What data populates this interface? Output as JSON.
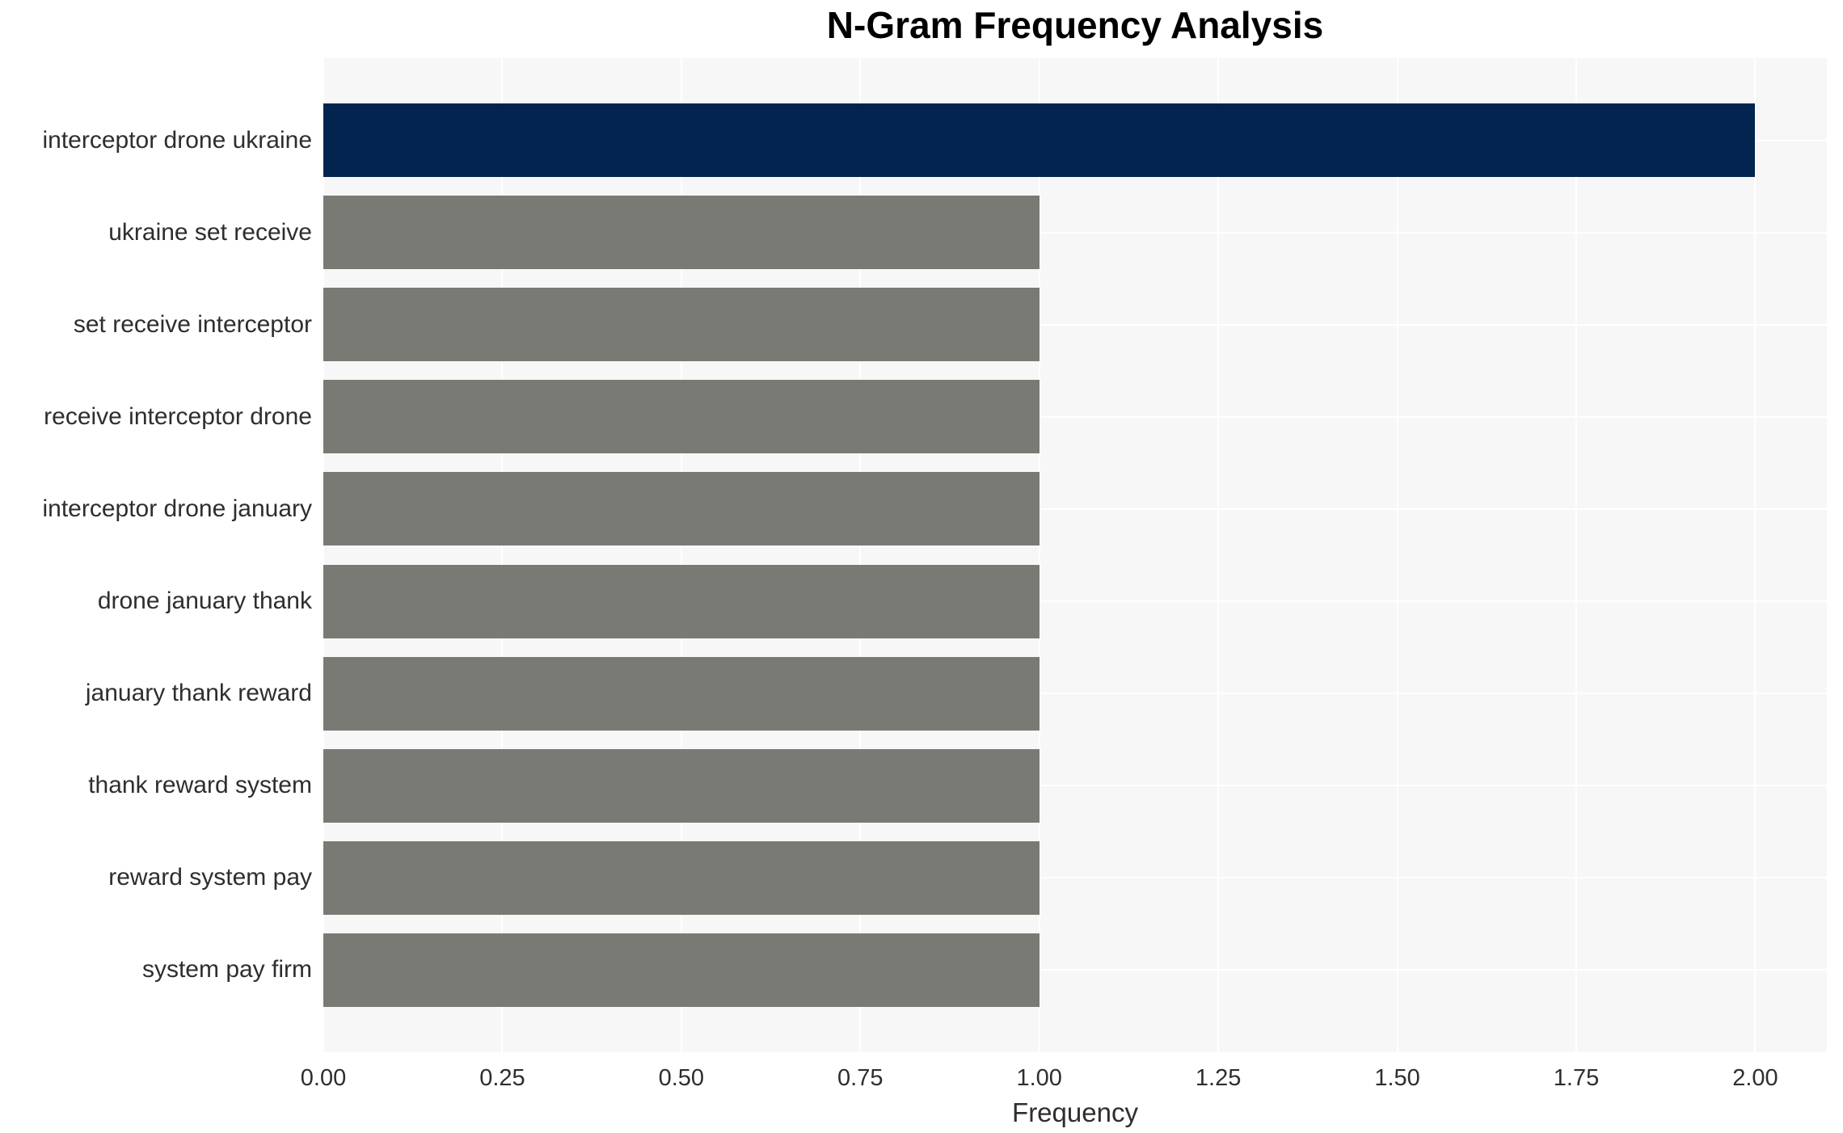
{
  "chart_data": {
    "type": "bar",
    "orientation": "horizontal",
    "title": "N-Gram Frequency Analysis",
    "xlabel": "Frequency",
    "ylabel": "",
    "categories": [
      "interceptor drone ukraine",
      "ukraine set receive",
      "set receive interceptor",
      "receive interceptor drone",
      "interceptor drone january",
      "drone january thank",
      "january thank reward",
      "thank reward system",
      "reward system pay",
      "system pay firm"
    ],
    "values": [
      2.0,
      1.0,
      1.0,
      1.0,
      1.0,
      1.0,
      1.0,
      1.0,
      1.0,
      1.0
    ],
    "bar_colors": [
      "#02244f",
      "#7a7a75",
      "#7a7a75",
      "#7a7a75",
      "#7a7a75",
      "#7a7a75",
      "#7a7a75",
      "#7a7a75",
      "#7a7a75",
      "#7a7a75"
    ],
    "x_tick_labels": [
      "0.00",
      "0.25",
      "0.50",
      "0.75",
      "1.00",
      "1.25",
      "1.50",
      "1.75",
      "2.00"
    ],
    "x_tick_values": [
      0,
      0.25,
      0.5,
      0.75,
      1.0,
      1.25,
      1.5,
      1.75,
      2.0
    ],
    "xlim": [
      0,
      2.1
    ],
    "grid": true,
    "legend_position": "none",
    "colors": {
      "highlight_bar": "#02244f",
      "default_bar": "#7a7a75",
      "plot_background": "#f7f7f7",
      "grid_line": "#ffffff",
      "axis_text": "#2e2e2e",
      "title_text": "#000000",
      "page_background": "#ffffff"
    }
  }
}
